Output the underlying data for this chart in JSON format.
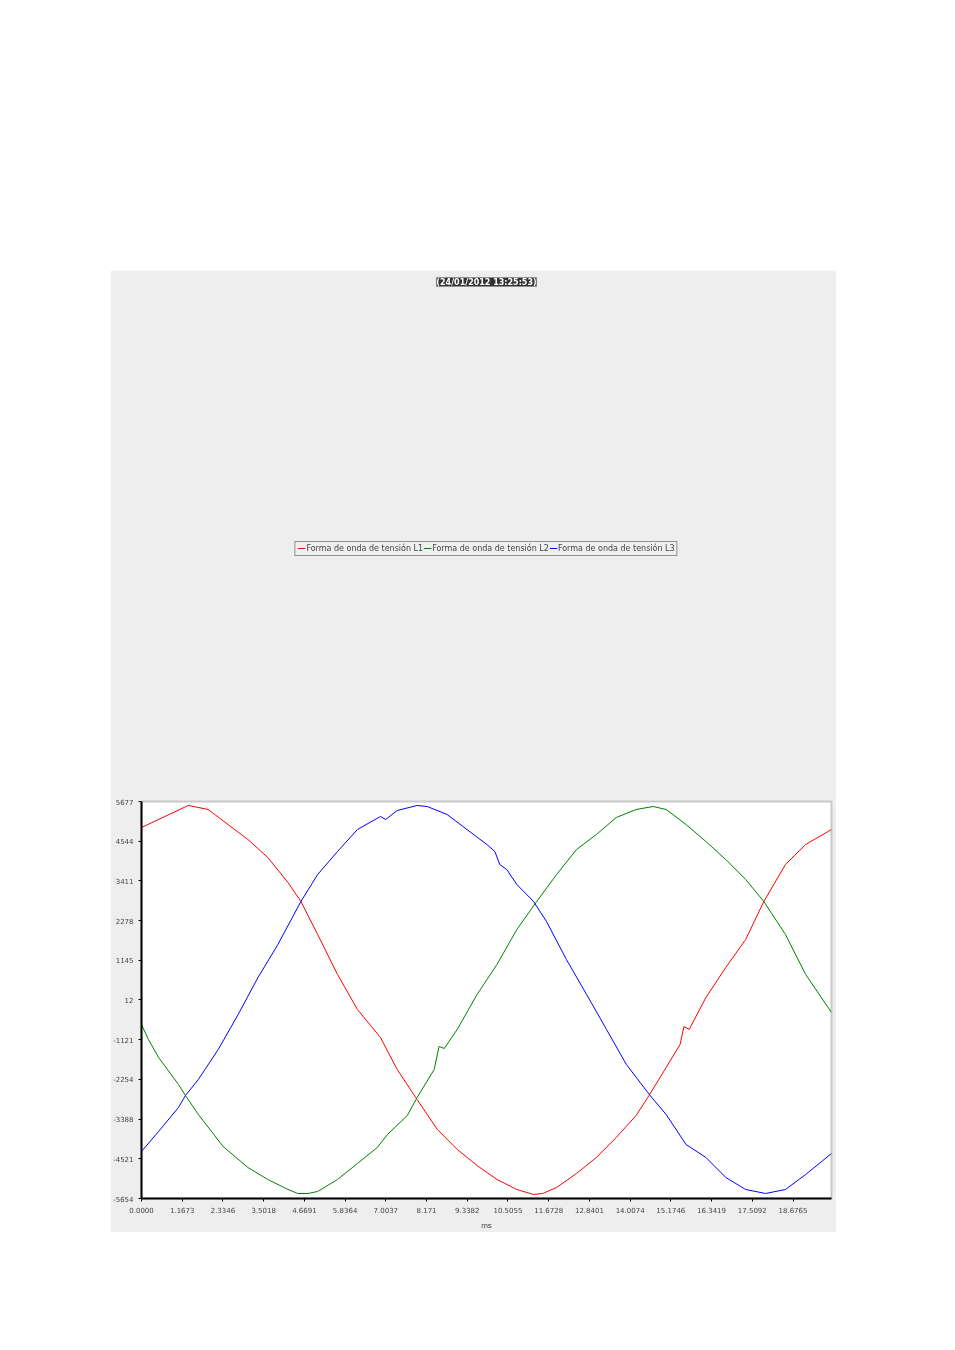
{
  "chart_data": {
    "type": "line",
    "title": "(24/01/2012 13:25:53)",
    "xlabel": "ms",
    "xlim": [
      0,
      19.78
    ],
    "ylim": [
      -5654,
      5677
    ],
    "xticks": [
      {
        "value": 0,
        "label": "0.0000"
      },
      1.1673,
      2.3346,
      3.5018,
      4.6691,
      5.8364,
      7.0037,
      8.171,
      9.3382,
      10.5055,
      11.6728,
      12.8401,
      14.0074,
      15.1746,
      16.3419,
      17.5092,
      18.6765
    ],
    "yticks": [
      -5654,
      -4521,
      -3388,
      -2254,
      -1121,
      12,
      1145,
      2278,
      3411,
      4544,
      5677
    ],
    "grid": false,
    "legend": "top",
    "marker": "none",
    "line_style": "solid",
    "series": [
      {
        "name": "Forma de onda de tensión L1",
        "color": "#ff0000",
        "x": [
          0,
          1.34,
          1.91,
          2.48,
          3.05,
          3.62,
          4.2,
          4.57,
          5.05,
          5.62,
          6.19,
          6.85,
          7.33,
          7.9,
          8.48,
          9.05,
          9.62,
          10.19,
          10.76,
          11.24,
          11.5,
          11.9,
          12.47,
          13.04,
          13.61,
          14.18,
          14.55,
          15.04,
          15.44,
          15.55,
          15.7,
          16.18,
          16.75,
          17.32,
          17.84,
          18.46,
          19.04,
          19.78
        ],
        "values": [
          4935,
          5563,
          5449,
          5021,
          4592,
          4079,
          3365,
          2823,
          1881,
          739,
          -259,
          -1058,
          -1972,
          -2828,
          -3684,
          -4255,
          -4712,
          -5111,
          -5397,
          -5540,
          -5511,
          -5340,
          -4940,
          -4483,
          -3912,
          -3285,
          -2714,
          -1915,
          -1258,
          -745,
          -830,
          83,
          939,
          1738,
          2823,
          3879,
          4450,
          4878
        ]
      },
      {
        "name": "Forma de onda de tensión L2",
        "color": "#008000",
        "x": [
          0,
          0.2,
          0.49,
          1.06,
          1.26,
          1.63,
          2.34,
          3.05,
          3.62,
          4.2,
          4.48,
          4.77,
          5.05,
          5.62,
          6.19,
          6.76,
          7.05,
          7.62,
          7.9,
          8.39,
          8.53,
          8.68,
          9.05,
          9.62,
          10.19,
          10.76,
          11.33,
          11.9,
          12.47,
          13.04,
          13.61,
          14.18,
          14.67,
          15.04,
          15.61,
          16.18,
          16.75,
          17.32,
          17.84,
          18.46,
          19.04,
          19.78
        ],
        "values": [
          -687,
          -1116,
          -1629,
          -2400,
          -2714,
          -3256,
          -4170,
          -4769,
          -5111,
          -5397,
          -5511,
          -5511,
          -5454,
          -5111,
          -4655,
          -4198,
          -3827,
          -3285,
          -2771,
          -1972,
          -1315,
          -1372,
          -830,
          169,
          1025,
          2024,
          2823,
          3594,
          4307,
          4735,
          5220,
          5449,
          5534,
          5449,
          5021,
          4535,
          4021,
          3451,
          2823,
          1881,
          739,
          -345
        ]
      },
      {
        "name": "Forma de onda de tensión L3",
        "color": "#0000ff",
        "x": [
          0,
          0.49,
          1.06,
          1.26,
          1.63,
          2.2,
          2.77,
          3.34,
          3.91,
          4.57,
          5.05,
          5.62,
          6.19,
          6.85,
          7.0,
          7.33,
          7.9,
          8.19,
          8.76,
          9.33,
          9.9,
          10.13,
          10.27,
          10.47,
          10.76,
          11.24,
          11.61,
          12.18,
          12.76,
          13.33,
          13.9,
          14.58,
          15.04,
          15.61,
          16.18,
          16.75,
          17.32,
          17.89,
          18.46,
          19.04,
          19.78
        ],
        "values": [
          -4312,
          -3741,
          -3056,
          -2714,
          -2257,
          -1401,
          -402,
          654,
          1596,
          2823,
          3594,
          4250,
          4878,
          5249,
          5163,
          5420,
          5563,
          5534,
          5306,
          4878,
          4450,
          4250,
          3879,
          3736,
          3308,
          2823,
          2252,
          1168,
          169,
          -830,
          -1829,
          -2714,
          -3256,
          -4112,
          -4483,
          -5054,
          -5397,
          -5511,
          -5397,
          -4969,
          -4369
        ]
      }
    ]
  }
}
